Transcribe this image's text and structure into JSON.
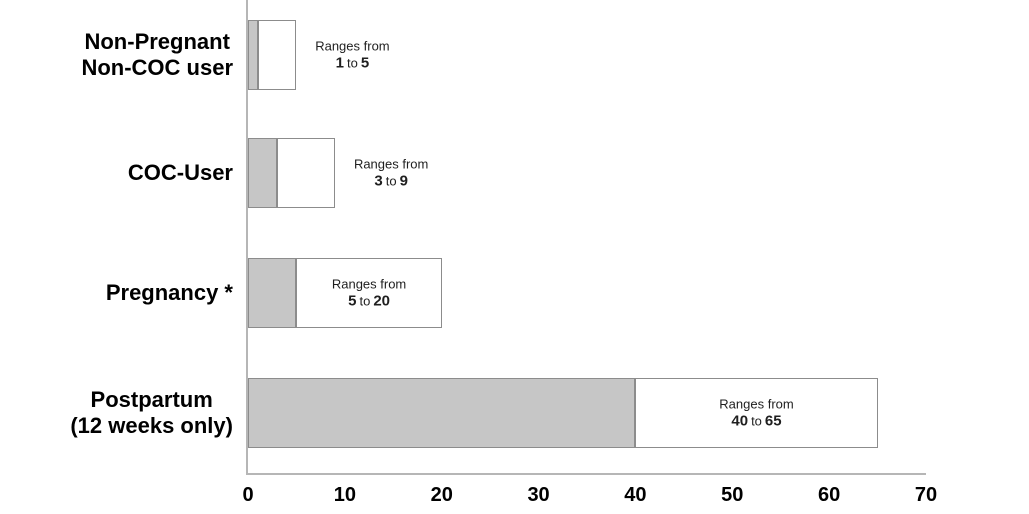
{
  "chart_data": {
    "type": "bar",
    "orientation": "horizontal",
    "title": "",
    "xlabel": "",
    "ylabel": "",
    "xlim": [
      0,
      70
    ],
    "x_ticks": [
      "0",
      "10",
      "20",
      "30",
      "40",
      "50",
      "60",
      "70"
    ],
    "grid": false,
    "legend": false,
    "categories": [
      "Non-Pregnant Non-COC user",
      "COC-User",
      "Pregnancy *",
      "Postpartum (12 weeks only)"
    ],
    "category_lines": [
      [
        "Non-Pregnant",
        "Non-COC user"
      ],
      [
        "COC-User"
      ],
      [
        "Pregnancy *"
      ],
      [
        "Postpartum",
        "(12 weeks only)"
      ]
    ],
    "series": [
      {
        "name": "range low",
        "values": [
          1,
          3,
          5,
          40
        ]
      },
      {
        "name": "range high",
        "values": [
          5,
          9,
          20,
          65
        ]
      }
    ],
    "annotations": [
      {
        "line1": "Ranges from",
        "low": "1",
        "conj": "to",
        "high": "5",
        "placement": "outside"
      },
      {
        "line1": "Ranges from",
        "low": "3",
        "conj": "to",
        "high": "9",
        "placement": "outside"
      },
      {
        "line1": "Ranges from",
        "low": "5",
        "conj": "to",
        "high": "20",
        "placement": "inside"
      },
      {
        "line1": "Ranges from",
        "low": "40",
        "conj": "to",
        "high": "65",
        "placement": "inside"
      }
    ],
    "colors": {
      "low_fill": "#c6c6c6",
      "high_fill": "#ffffff",
      "bar_border": "#8c8c8c",
      "axis_line": "#b6b6b6",
      "text": "#000000"
    }
  }
}
